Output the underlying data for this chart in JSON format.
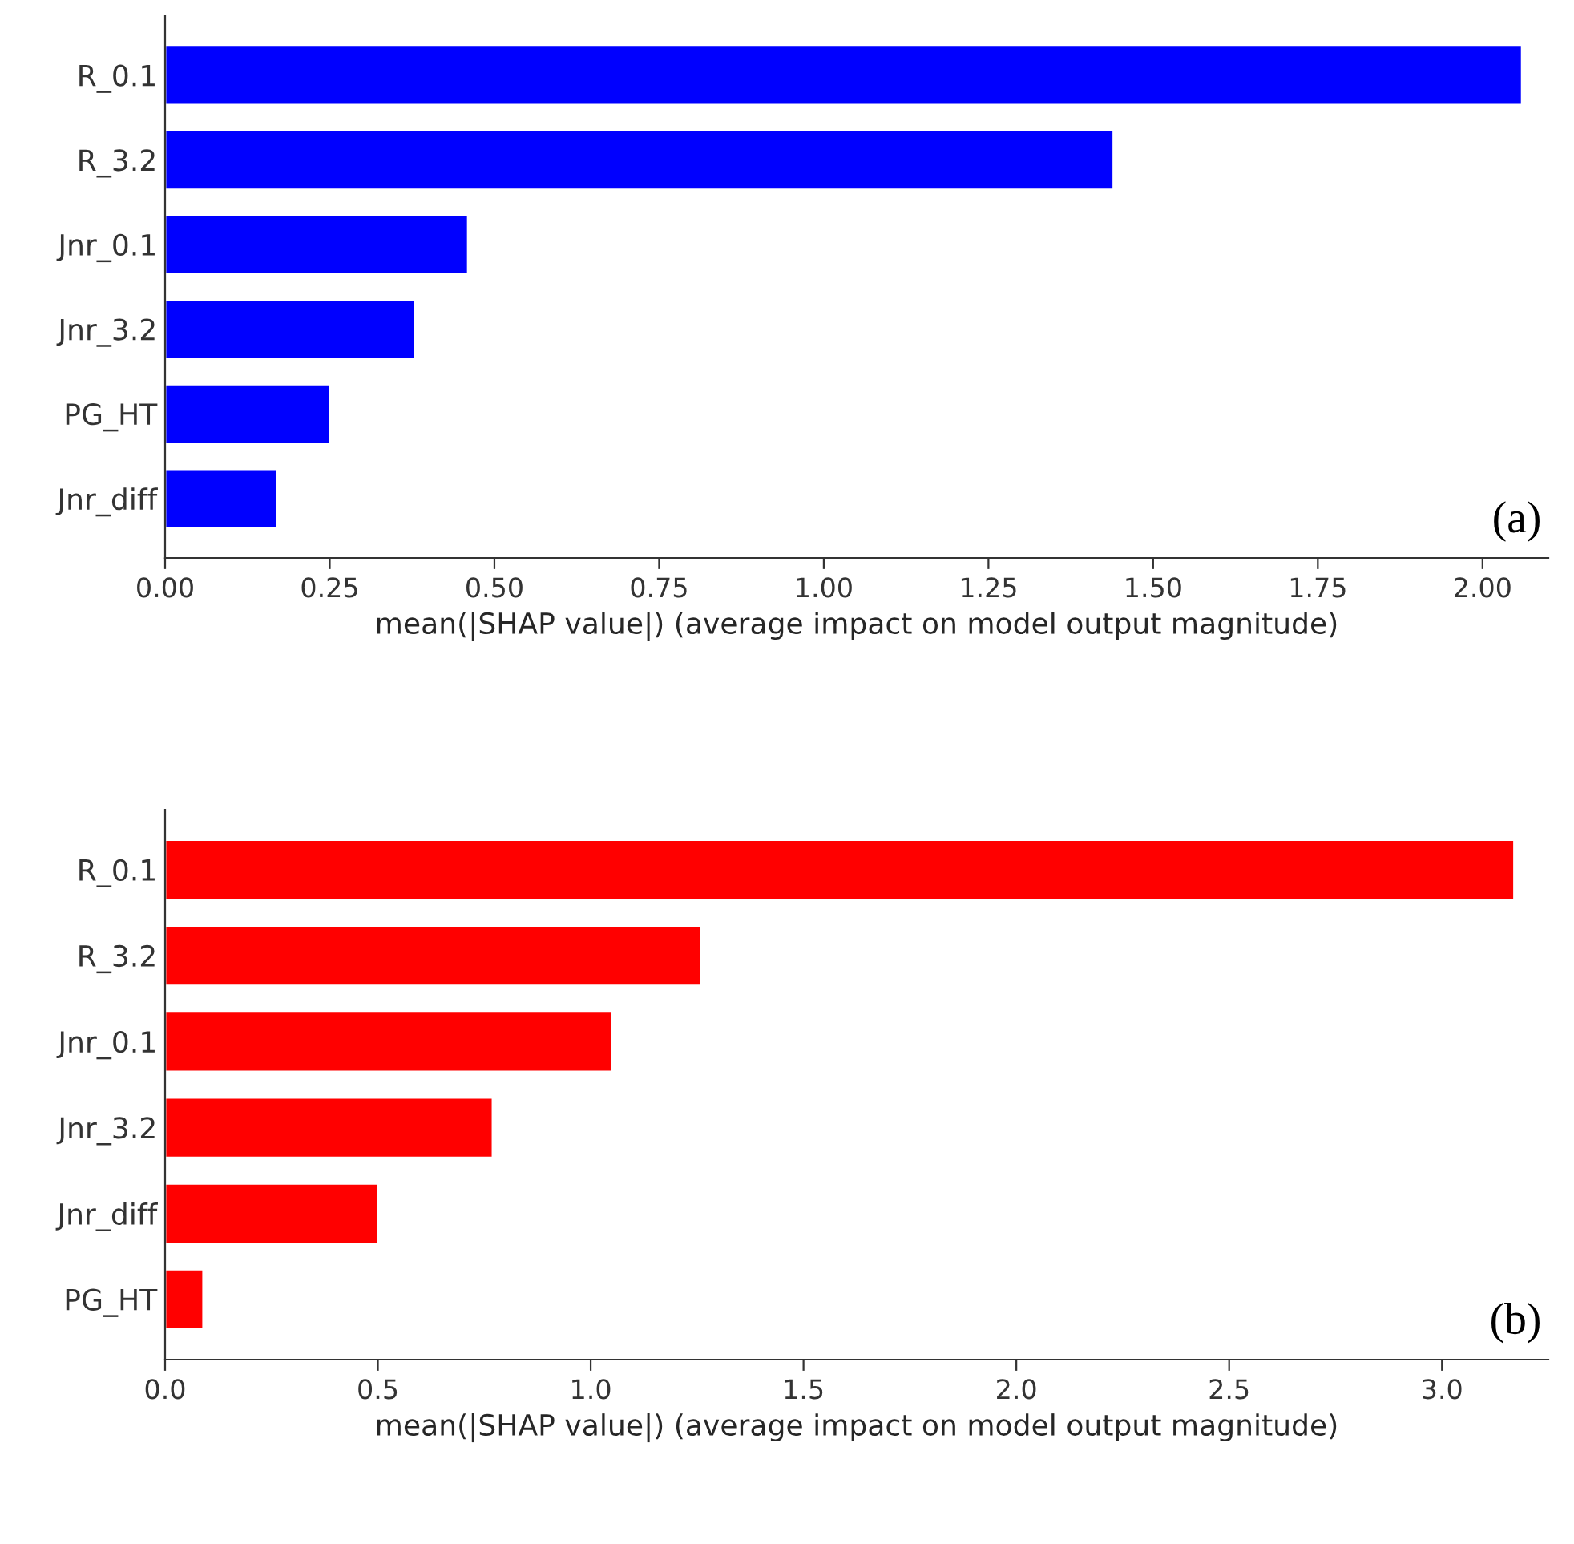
{
  "chart_data": [
    {
      "type": "bar",
      "orientation": "horizontal",
      "categories": [
        "R_0.1",
        "R_3.2",
        "Jnr_0.1",
        "Jnr_3.2",
        "PG_HT",
        "Jnr_diff"
      ],
      "values": [
        2.06,
        1.44,
        0.46,
        0.38,
        0.25,
        0.17
      ],
      "color": "#0000ff",
      "xlim": [
        0,
        2.1
      ],
      "xticks": [
        {
          "value": 0,
          "label": "0.00"
        },
        {
          "value": 0.25,
          "label": "0.25"
        },
        {
          "value": 0.5,
          "label": "0.50"
        },
        {
          "value": 0.75,
          "label": "0.75"
        },
        {
          "value": 1,
          "label": "1.00"
        },
        {
          "value": 1.25,
          "label": "1.25"
        },
        {
          "value": 1.5,
          "label": "1.50"
        },
        {
          "value": 1.75,
          "label": "1.75"
        },
        {
          "value": 2,
          "label": "2.00"
        }
      ],
      "xlabel": "mean(|SHAP value|) (average impact on model output magnitude)",
      "annotations": [
        "(a)"
      ],
      "grid": false,
      "legend": false
    },
    {
      "type": "bar",
      "orientation": "horizontal",
      "categories": [
        "R_0.1",
        "R_3.2",
        "Jnr_0.1",
        "Jnr_3.2",
        "Jnr_diff",
        "PG_HT"
      ],
      "values": [
        3.17,
        1.26,
        1.05,
        0.77,
        0.5,
        0.09
      ],
      "color": "#ff0000",
      "xlim": [
        0,
        3.25
      ],
      "xticks": [
        {
          "value": 0,
          "label": "0.0"
        },
        {
          "value": 0.5,
          "label": "0.5"
        },
        {
          "value": 1,
          "label": "1.0"
        },
        {
          "value": 1.5,
          "label": "1.5"
        },
        {
          "value": 2,
          "label": "2.0"
        },
        {
          "value": 2.5,
          "label": "2.5"
        },
        {
          "value": 3,
          "label": "3.0"
        }
      ],
      "xlabel": "mean(|SHAP value|) (average impact on model output magnitude)",
      "annotations": [
        "(b)"
      ],
      "grid": false,
      "legend": false
    }
  ]
}
